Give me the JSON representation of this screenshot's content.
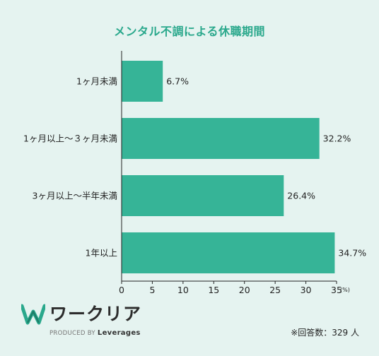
{
  "chart_data": {
    "type": "bar",
    "orientation": "horizontal",
    "title": "メンタル不調による休職期間",
    "categories": [
      "1ヶ月未満",
      "1ヶ月以上～３ヶ月未満",
      "3ヶ月以上～半年未満",
      "1年以上"
    ],
    "values": [
      6.7,
      32.2,
      26.4,
      34.7
    ],
    "value_labels": [
      "6.7%",
      "32.2%",
      "26.4%",
      "34.7%"
    ],
    "xlim": [
      0,
      35
    ],
    "xticks": [
      "0",
      "5",
      "10",
      "15",
      "20",
      "25",
      "30",
      "35"
    ],
    "x_unit": "(%)",
    "grid": false,
    "bar_color": "#36b497"
  },
  "brand": {
    "name": "ワークリア",
    "produced_by": "PRODUCED BY",
    "company": "Leverages",
    "mark_color": "#2aa88c"
  },
  "note": "※回答数：329 人"
}
